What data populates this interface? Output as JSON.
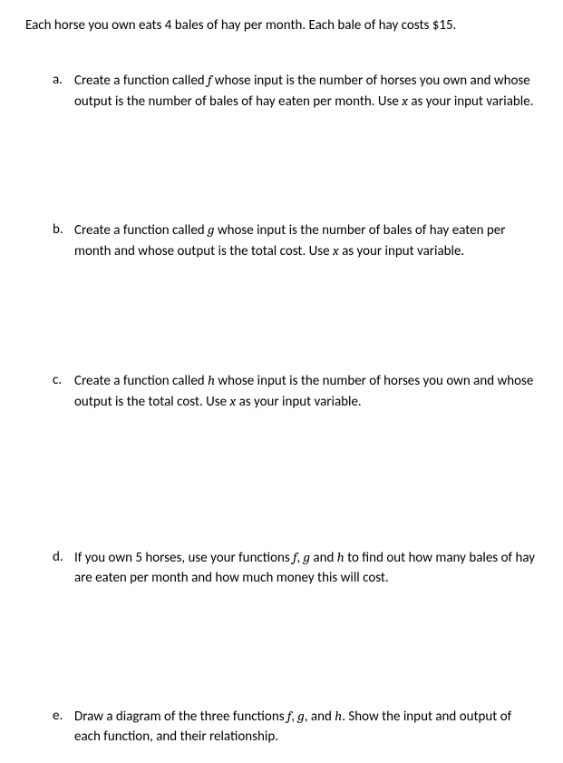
{
  "intro": "Each horse you own eats 4 bales of hay per month.  Each bale of hay costs $15.",
  "items": [
    {
      "marker": "a.",
      "segments": [
        {
          "t": "Create a function called "
        },
        {
          "t": "f",
          "math": true
        },
        {
          "t": " whose input is the number of horses you own and whose output is the number of bales of hay eaten per month. Use "
        },
        {
          "t": "x",
          "math": true
        },
        {
          "t": " as your input variable."
        }
      ]
    },
    {
      "marker": "b.",
      "segments": [
        {
          "t": "Create a function called "
        },
        {
          "t": "g",
          "math": true
        },
        {
          "t": " whose input is the number of bales of hay eaten per month and whose output is the total cost. Use "
        },
        {
          "t": "x",
          "math": true
        },
        {
          "t": " as your input variable."
        }
      ]
    },
    {
      "marker": "c.",
      "segments": [
        {
          "t": "Create a function called "
        },
        {
          "t": "h",
          "math": true
        },
        {
          "t": " whose input is the number of horses you own and whose output is the total cost. Use "
        },
        {
          "t": "x",
          "math": true
        },
        {
          "t": " as your input variable."
        }
      ]
    },
    {
      "marker": "d.",
      "segments": [
        {
          "t": "If you own 5 horses, use your functions "
        },
        {
          "t": "f",
          "math": true
        },
        {
          "t": ", "
        },
        {
          "t": "g",
          "math": true
        },
        {
          "t": " and "
        },
        {
          "t": "h",
          "math": true
        },
        {
          "t": " to find out how many bales of hay are eaten per month and how much money this will cost."
        }
      ]
    },
    {
      "marker": "e.",
      "segments": [
        {
          "t": "Draw a diagram of the three functions "
        },
        {
          "t": "f",
          "math": true
        },
        {
          "t": ", "
        },
        {
          "t": "g",
          "math": true
        },
        {
          "t": ", and "
        },
        {
          "t": "h",
          "math": true
        },
        {
          "t": ".  Show the input and output of each function, and their relationship."
        }
      ]
    }
  ],
  "spacing_after": [
    120,
    120,
    150,
    130,
    0
  ]
}
